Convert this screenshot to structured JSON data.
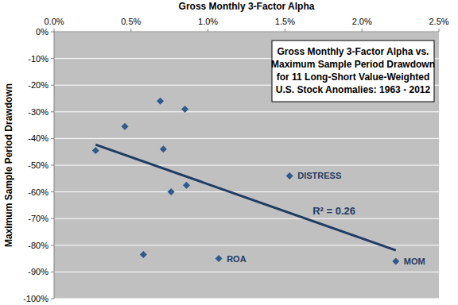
{
  "chart_data": {
    "type": "scatter",
    "title": [
      "Gross Monthly 3-Factor Alpha vs.",
      "Maximum Sample Period Drawdown",
      "for 11 Long-Short Value-Weighted",
      "U.S. Stock Anomalies: 1963 - 2012"
    ],
    "x_label": "Gross Monthly 3-Factor Alpha",
    "y_label": "Maximum Sample Period Drawdown",
    "xlim": [
      0,
      2.5
    ],
    "xticks": [
      {
        "value": 0,
        "label": "0.0%"
      },
      {
        "value": 0.5,
        "label": "0.5%"
      },
      {
        "value": 1,
        "label": "1.0%"
      },
      {
        "value": 1.5,
        "label": "1.5%"
      },
      {
        "value": 2,
        "label": "2.0%"
      },
      {
        "value": 2.5,
        "label": "2.5%"
      }
    ],
    "ylim": [
      -100,
      0
    ],
    "yticks": [
      {
        "value": 0,
        "label": "0%"
      },
      {
        "value": -10,
        "label": "-10%"
      },
      {
        "value": -20,
        "label": "-20%"
      },
      {
        "value": -30,
        "label": "-30%"
      },
      {
        "value": -40,
        "label": "-40%"
      },
      {
        "value": -50,
        "label": "-50%"
      },
      {
        "value": -60,
        "label": "-60%"
      },
      {
        "value": -70,
        "label": "-70%"
      },
      {
        "value": -80,
        "label": "-80%"
      },
      {
        "value": -90,
        "label": "-90%"
      },
      {
        "value": -100,
        "label": "-100%"
      }
    ],
    "grid": true,
    "series": [
      {
        "type": "scatter",
        "marker": "diamond",
        "color": "#2f5b8c",
        "x": [
          0.27,
          0.46,
          0.69,
          0.85,
          0.71,
          0.76,
          0.86,
          0.58,
          1.07,
          1.53,
          2.22
        ],
        "values": [
          -44.5,
          -35.5,
          -26,
          -29,
          -44,
          -60,
          -57.5,
          -83.5,
          -85,
          -54,
          -86
        ],
        "labels": [
          null,
          null,
          null,
          null,
          null,
          null,
          null,
          null,
          "ROA",
          "DISTRESS",
          "MOM"
        ]
      },
      {
        "type": "line",
        "line_style": "solid",
        "color": "#1f3b63",
        "x": [
          0.27,
          2.22
        ],
        "values": [
          -42.3,
          -81.9
        ]
      }
    ],
    "annotations": [
      {
        "text": "R² = 0.26",
        "x": 1.68,
        "y": -68.5
      }
    ]
  }
}
